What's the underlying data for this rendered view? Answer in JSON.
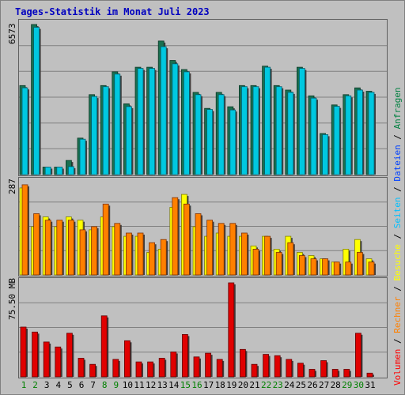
{
  "title": "Tages-Statistik im Monat Juli 2023",
  "scale_labels": {
    "top": "6573",
    "middle": "287",
    "bottom": "75.50 MB"
  },
  "legend": {
    "items": [
      {
        "label": "Volumen",
        "color": "#ff0000"
      },
      {
        "label": "Rechner",
        "color": "#ff8000"
      },
      {
        "label": "Besuche",
        "color": "#ffff00"
      },
      {
        "label": "Seiten",
        "color": "#00c0ff"
      },
      {
        "label": "Dateien",
        "color": "#0040ff"
      },
      {
        "label": "Anfragen",
        "color": "#008040"
      }
    ],
    "separator": " / "
  },
  "colors": {
    "anfragen": "#1a7050",
    "dateien": "#00c8e0",
    "besuche": "#ffff00",
    "rechner": "#ff8000",
    "volumen": "#e00000",
    "weekend_label": "#008000",
    "weekday_label": "#000000"
  },
  "chart_data": [
    {
      "type": "bar",
      "title": "Tages-Statistik im Monat Juli 2023",
      "categories": [
        "1",
        "2",
        "3",
        "4",
        "5",
        "6",
        "7",
        "8",
        "9",
        "10",
        "11",
        "12",
        "13",
        "14",
        "15",
        "16",
        "17",
        "18",
        "19",
        "20",
        "21",
        "22",
        "23",
        "24",
        "25",
        "26",
        "27",
        "28",
        "29",
        "30",
        "31"
      ],
      "weekend_days": [
        1,
        2,
        8,
        9,
        15,
        16,
        22,
        23,
        29,
        30
      ],
      "ylim": [
        0,
        6573
      ],
      "series": [
        {
          "name": "Anfragen",
          "values": [
            3900,
            6573,
            330,
            330,
            620,
            1600,
            3500,
            3900,
            4500,
            3100,
            4700,
            4700,
            5850,
            5000,
            4600,
            3600,
            2900,
            3600,
            2970,
            3900,
            3900,
            4750,
            3900,
            3700,
            4700,
            3450,
            1800,
            3050,
            3500,
            3800,
            3650
          ]
        },
        {
          "name": "Dateien",
          "values": [
            3800,
            6450,
            330,
            330,
            350,
            1550,
            3420,
            3850,
            4400,
            2980,
            4650,
            4650,
            5600,
            4850,
            4500,
            3500,
            2850,
            3500,
            2830,
            3850,
            3850,
            4700,
            3850,
            3600,
            4650,
            3350,
            1750,
            2990,
            3450,
            3700,
            3600
          ]
        }
      ]
    },
    {
      "type": "bar",
      "ylim": [
        0,
        287
      ],
      "series": [
        {
          "name": "Besuche",
          "values": [
            270,
            150,
            180,
            150,
            180,
            170,
            140,
            180,
            150,
            120,
            120,
            70,
            80,
            210,
            250,
            150,
            120,
            130,
            120,
            120,
            90,
            120,
            80,
            120,
            70,
            60,
            50,
            40,
            80,
            110,
            50
          ]
        },
        {
          "name": "Rechner",
          "values": [
            280,
            190,
            170,
            170,
            170,
            140,
            150,
            220,
            160,
            130,
            130,
            100,
            110,
            240,
            220,
            190,
            170,
            160,
            160,
            130,
            80,
            120,
            70,
            100,
            60,
            50,
            50,
            40,
            40,
            70,
            40
          ]
        }
      ]
    },
    {
      "type": "bar",
      "ylim": [
        0,
        75.5
      ],
      "ylabel": "MB",
      "series": [
        {
          "name": "Volumen",
          "values": [
            40,
            36,
            28,
            24,
            35,
            15,
            10,
            49,
            14,
            29,
            12,
            12,
            15,
            20,
            34,
            16,
            19,
            14,
            75.5,
            22,
            10,
            18,
            17,
            14,
            11,
            6,
            13,
            6,
            6,
            35,
            3
          ]
        }
      ]
    }
  ]
}
